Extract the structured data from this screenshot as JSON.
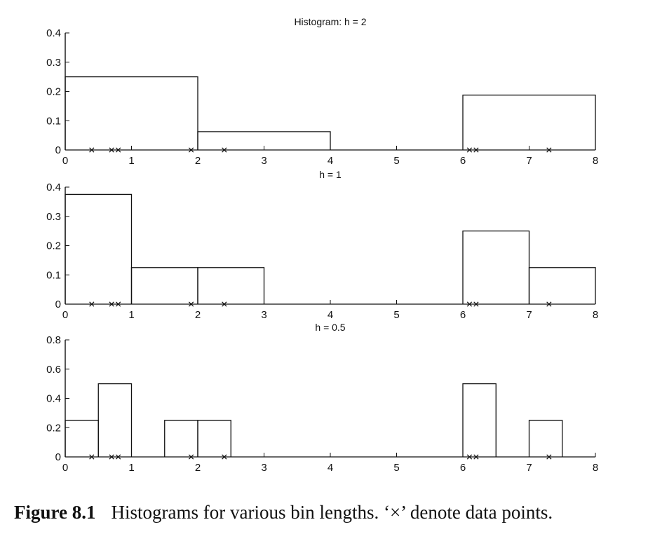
{
  "chart_data": [
    {
      "type": "histogram",
      "title": "Histogram: h = 2",
      "bin_width": 2,
      "xlim": [
        0,
        8
      ],
      "ylim": [
        0,
        0.4
      ],
      "xticks": [
        0,
        1,
        2,
        3,
        4,
        5,
        6,
        7,
        8
      ],
      "yticks": [
        0,
        0.1,
        0.2,
        0.3,
        0.4
      ],
      "xtick_labels": [
        "0",
        "1",
        "2",
        "3",
        "4",
        "5",
        "6",
        "7",
        "8"
      ],
      "ytick_labels": [
        "0",
        "0.1",
        "0.2",
        "0.3",
        "0.4"
      ],
      "bins": [
        {
          "x0": 0,
          "x1": 2,
          "value": 0.25
        },
        {
          "x0": 2,
          "x1": 4,
          "value": 0.0625
        },
        {
          "x0": 4,
          "x1": 6,
          "value": 0
        },
        {
          "x0": 6,
          "x1": 8,
          "value": 0.1875
        }
      ],
      "data_points": [
        0.4,
        0.7,
        0.8,
        1.9,
        2.4,
        6.1,
        6.2,
        7.3
      ]
    },
    {
      "type": "histogram",
      "title": "h = 1",
      "bin_width": 1,
      "xlim": [
        0,
        8
      ],
      "ylim": [
        0,
        0.4
      ],
      "xticks": [
        0,
        1,
        2,
        3,
        4,
        5,
        6,
        7,
        8
      ],
      "yticks": [
        0,
        0.1,
        0.2,
        0.3,
        0.4
      ],
      "xtick_labels": [
        "0",
        "1",
        "2",
        "3",
        "4",
        "5",
        "6",
        "7",
        "8"
      ],
      "ytick_labels": [
        "0",
        "0.1",
        "0.2",
        "0.3",
        "0.4"
      ],
      "bins": [
        {
          "x0": 0,
          "x1": 1,
          "value": 0.375
        },
        {
          "x0": 1,
          "x1": 2,
          "value": 0.125
        },
        {
          "x0": 2,
          "x1": 3,
          "value": 0.125
        },
        {
          "x0": 3,
          "x1": 4,
          "value": 0
        },
        {
          "x0": 4,
          "x1": 5,
          "value": 0
        },
        {
          "x0": 5,
          "x1": 6,
          "value": 0
        },
        {
          "x0": 6,
          "x1": 7,
          "value": 0.25
        },
        {
          "x0": 7,
          "x1": 8,
          "value": 0.125
        }
      ],
      "data_points": [
        0.4,
        0.7,
        0.8,
        1.9,
        2.4,
        6.1,
        6.2,
        7.3
      ]
    },
    {
      "type": "histogram",
      "title": "h = 0.5",
      "bin_width": 0.5,
      "xlim": [
        0,
        8
      ],
      "ylim": [
        0,
        0.8
      ],
      "xticks": [
        0,
        1,
        2,
        3,
        4,
        5,
        6,
        7,
        8
      ],
      "yticks": [
        0,
        0.2,
        0.4,
        0.6,
        0.8
      ],
      "xtick_labels": [
        "0",
        "1",
        "2",
        "3",
        "4",
        "5",
        "6",
        "7",
        "8"
      ],
      "ytick_labels": [
        "0",
        "0.2",
        "0.4",
        "0.6",
        "0.8"
      ],
      "bins": [
        {
          "x0": 0,
          "x1": 0.5,
          "value": 0.25
        },
        {
          "x0": 0.5,
          "x1": 1,
          "value": 0.5
        },
        {
          "x0": 1,
          "x1": 1.5,
          "value": 0
        },
        {
          "x0": 1.5,
          "x1": 2,
          "value": 0.25
        },
        {
          "x0": 2,
          "x1": 2.5,
          "value": 0.25
        },
        {
          "x0": 2.5,
          "x1": 6,
          "value": 0
        },
        {
          "x0": 6,
          "x1": 6.5,
          "value": 0.5
        },
        {
          "x0": 6.5,
          "x1": 7,
          "value": 0
        },
        {
          "x0": 7,
          "x1": 7.5,
          "value": 0.25
        },
        {
          "x0": 7.5,
          "x1": 8,
          "value": 0
        }
      ],
      "data_points": [
        0.4,
        0.7,
        0.8,
        1.9,
        2.4,
        6.1,
        6.2,
        7.3
      ]
    }
  ],
  "caption": {
    "label": "Figure 8.1",
    "text": "Histograms for various bin lengths. ‘×’ denote data points."
  },
  "colors": {
    "ink": "#111111",
    "background": "#ffffff"
  }
}
